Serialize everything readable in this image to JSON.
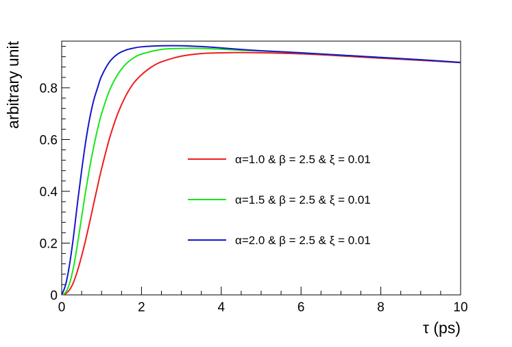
{
  "chart_data": {
    "type": "line",
    "title": "",
    "xlabel": "τ (ps)",
    "ylabel": "arbitrary unit",
    "xlim": [
      0,
      10
    ],
    "ylim": [
      0,
      0.98
    ],
    "x_ticks": [
      0,
      2,
      4,
      6,
      8,
      10
    ],
    "x_tick_labels": [
      "0",
      "2",
      "4",
      "6",
      "8",
      "10"
    ],
    "y_ticks": [
      0,
      0.2,
      0.4,
      0.6,
      0.8
    ],
    "y_tick_labels": [
      "0",
      "0.2",
      "0.4",
      "0.6",
      "0.8"
    ],
    "grid": false,
    "legend_position": "center-right",
    "series": [
      {
        "name": "α=1.0 & β = 2.5 & ξ = 0.01",
        "color": "#ee1c1c",
        "x": [
          0,
          0.1,
          0.2,
          0.3,
          0.4,
          0.5,
          0.6,
          0.7,
          0.8,
          0.9,
          1.0,
          1.2,
          1.4,
          1.6,
          1.8,
          2.0,
          2.25,
          2.5,
          3.0,
          3.5,
          4.0,
          4.5,
          5.0,
          6.0,
          7.0,
          8.0,
          9.0,
          10.0
        ],
        "y": [
          0,
          0.005,
          0.02,
          0.05,
          0.095,
          0.15,
          0.212,
          0.28,
          0.35,
          0.42,
          0.487,
          0.605,
          0.698,
          0.767,
          0.817,
          0.85,
          0.88,
          0.9,
          0.922,
          0.932,
          0.935,
          0.936,
          0.935,
          0.931,
          0.923,
          0.914,
          0.906,
          0.897
        ]
      },
      {
        "name": "α=1.5 & β = 2.5 & ξ = 0.01",
        "color": "#19e619",
        "x": [
          0,
          0.1,
          0.2,
          0.3,
          0.4,
          0.5,
          0.6,
          0.7,
          0.8,
          0.9,
          1.0,
          1.2,
          1.4,
          1.6,
          1.8,
          2.0,
          2.5,
          3.0,
          3.5,
          4.0,
          4.5,
          5.0,
          6.0,
          7.0,
          8.0,
          9.0,
          10.0
        ],
        "y": [
          0,
          0.01,
          0.045,
          0.11,
          0.2,
          0.3,
          0.4,
          0.49,
          0.57,
          0.64,
          0.7,
          0.79,
          0.85,
          0.89,
          0.915,
          0.93,
          0.948,
          0.952,
          0.952,
          0.949,
          0.945,
          0.942,
          0.935,
          0.926,
          0.917,
          0.908,
          0.898
        ]
      },
      {
        "name": "α=2.0 & β = 2.5 & ξ = 0.01",
        "color": "#1515cc",
        "x": [
          0,
          0.1,
          0.2,
          0.3,
          0.4,
          0.5,
          0.6,
          0.7,
          0.8,
          0.9,
          1.0,
          1.2,
          1.4,
          1.6,
          1.8,
          2.0,
          2.5,
          3.0,
          3.5,
          4.0,
          4.5,
          5.0,
          6.0,
          7.0,
          8.0,
          9.0,
          10.0
        ],
        "y": [
          0,
          0.04,
          0.12,
          0.23,
          0.36,
          0.48,
          0.59,
          0.68,
          0.75,
          0.8,
          0.845,
          0.9,
          0.93,
          0.945,
          0.953,
          0.958,
          0.962,
          0.962,
          0.959,
          0.954,
          0.948,
          0.943,
          0.935,
          0.926,
          0.917,
          0.908,
          0.898
        ]
      }
    ]
  }
}
